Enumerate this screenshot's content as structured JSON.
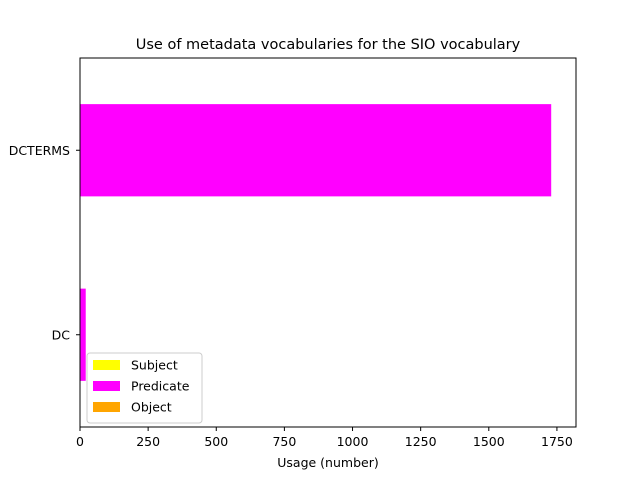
{
  "chart_data": {
    "type": "bar",
    "orientation": "horizontal",
    "stacked": true,
    "title": "Use of metadata vocabularies for the SIO vocabulary",
    "xlabel": "Usage (number)",
    "ylabel": "",
    "categories": [
      "DC",
      "DCTERMS"
    ],
    "series": [
      {
        "name": "Subject",
        "color": "#ffff00",
        "values": [
          0,
          0
        ]
      },
      {
        "name": "Predicate",
        "color": "#ff00ff",
        "values": [
          21,
          1729
        ]
      },
      {
        "name": "Object",
        "color": "#ffa500",
        "values": [
          0,
          0
        ]
      }
    ],
    "xlim": [
      0,
      1820
    ],
    "xticks": [
      0,
      250,
      500,
      750,
      1000,
      1250,
      1500,
      1750
    ],
    "grid": false,
    "legend_position": "lower-left"
  }
}
